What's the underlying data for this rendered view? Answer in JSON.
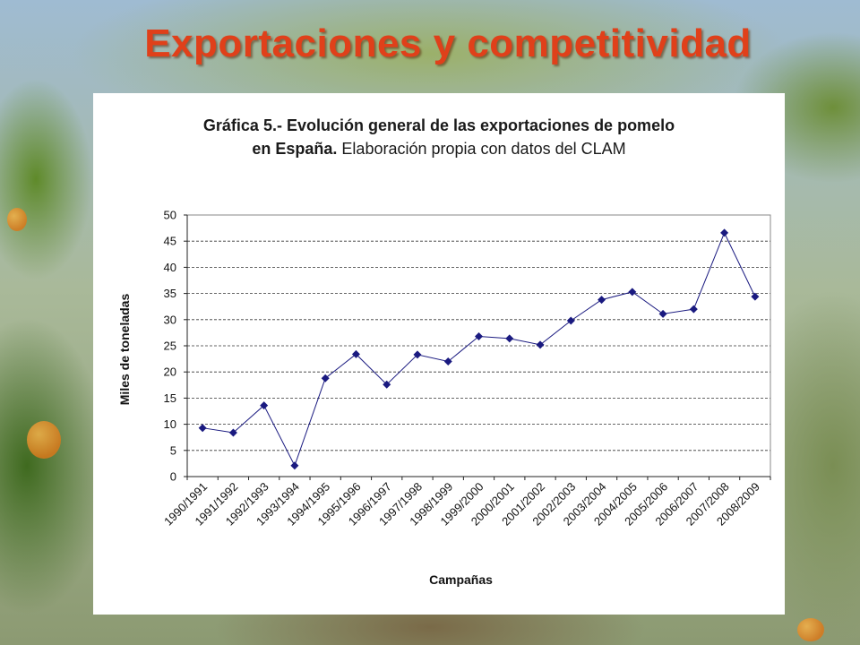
{
  "slide": {
    "title": "Exportaciones y competitividad"
  },
  "chart_data": {
    "type": "line",
    "title_bold_line1": "Gráfica 5.- Evolución general de las exportaciones de pomelo",
    "title_bold_line2": "en España.",
    "title_rest_line2": "Elaboración propia con datos del CLAM",
    "xlabel": "Campañas",
    "ylabel": "Miles de toneladas",
    "ylim": [
      0,
      50
    ],
    "yticks": [
      0,
      5,
      10,
      15,
      20,
      25,
      30,
      35,
      40,
      45,
      50
    ],
    "grid": "horizontal dashed",
    "categories": [
      "1990/1991",
      "1991/1992",
      "1992/1993",
      "1993/1994",
      "1994/1995",
      "1995/1996",
      "1996/1997",
      "1997/1998",
      "1998/1999",
      "1999/2000",
      "2000/2001",
      "2001/2002",
      "2002/2003",
      "2003/2004",
      "2004/2005",
      "2005/2006",
      "2006/2007",
      "2007/2008",
      "2008/2009"
    ],
    "series": [
      {
        "values": [
          9.3,
          8.4,
          13.6,
          2.1,
          18.8,
          23.4,
          17.6,
          23.3,
          22.0,
          26.8,
          26.4,
          25.2,
          29.8,
          33.8,
          35.3,
          31.1,
          32.0,
          46.6,
          34.4
        ],
        "color": "#1a1a80"
      }
    ]
  }
}
